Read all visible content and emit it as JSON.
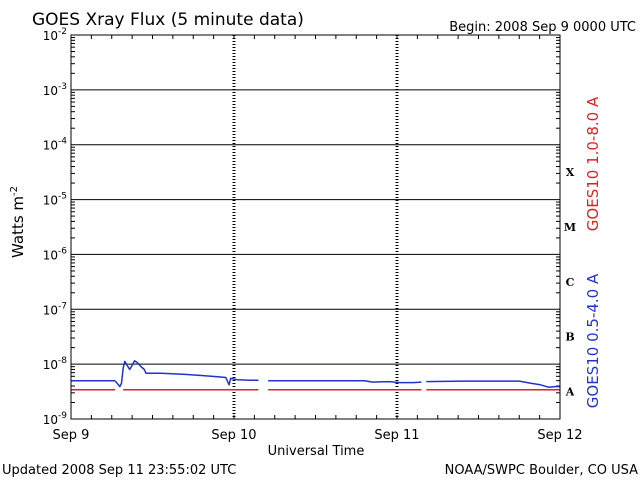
{
  "chart_data": {
    "type": "line",
    "title": "GOES Xray Flux (5 minute data)",
    "begin_label": "Begin:  2008 Sep 9 0000 UTC",
    "xlabel": "Universal Time",
    "ylabel_base": "Watts m",
    "ylabel_exp": "-2",
    "footer_left": "Updated 2008 Sep 11 23:55:02 UTC",
    "footer_right": "NOAA/SWPC Boulder, CO USA",
    "x_unit": "days since 2008 Sep 9 0000 UTC",
    "xlim": [
      0,
      3
    ],
    "x_ticks": [
      {
        "value": 0,
        "label": "Sep 9"
      },
      {
        "value": 1,
        "label": "Sep 10"
      },
      {
        "value": 2,
        "label": "Sep 11"
      },
      {
        "value": 3,
        "label": "Sep 12"
      }
    ],
    "y_scale": "log",
    "ylim_exponent": [
      -9,
      -2
    ],
    "y_ticks": [
      {
        "exp": -9,
        "base": "10",
        "sup": "-9"
      },
      {
        "exp": -8,
        "base": "10",
        "sup": "-8"
      },
      {
        "exp": -7,
        "base": "10",
        "sup": "-7"
      },
      {
        "exp": -6,
        "base": "10",
        "sup": "-6"
      },
      {
        "exp": -5,
        "base": "10",
        "sup": "-5"
      },
      {
        "exp": -4,
        "base": "10",
        "sup": "-4"
      },
      {
        "exp": -3,
        "base": "10",
        "sup": "-3"
      },
      {
        "exp": -2,
        "base": "10",
        "sup": "-2"
      }
    ],
    "flare_classes": [
      {
        "label": "A",
        "exp": -8
      },
      {
        "label": "B",
        "exp": -7
      },
      {
        "label": "C",
        "exp": -6
      },
      {
        "label": "M",
        "exp": -5
      },
      {
        "label": "X",
        "exp": -4
      }
    ],
    "grid": true,
    "series": [
      {
        "name": "GOES10 0.5-4.0 A",
        "color": "#2233cc",
        "segments": [
          [
            [
              0,
              5e-09
            ],
            [
              0.27,
              5e-09
            ]
          ],
          [
            [
              0.27,
              5e-09
            ],
            [
              0.3,
              3.9e-09
            ],
            [
              0.31,
              4.5e-09
            ],
            [
              0.32,
              8.5e-09
            ],
            [
              0.33,
              1.12e-08
            ],
            [
              0.34,
              1e-08
            ],
            [
              0.36,
              8e-09
            ],
            [
              0.37,
              9e-09
            ],
            [
              0.39,
              1.15e-08
            ],
            [
              0.41,
              1.05e-08
            ],
            [
              0.43,
              9e-09
            ],
            [
              0.45,
              8e-09
            ],
            [
              0.46,
              6.8e-09
            ],
            [
              0.55,
              6.8e-09
            ],
            [
              0.62,
              6.7e-09
            ],
            [
              0.7,
              6.5e-09
            ],
            [
              0.8,
              6.2e-09
            ],
            [
              0.9,
              5.9e-09
            ],
            [
              0.95,
              5.7e-09
            ],
            [
              0.97,
              4.2e-09
            ],
            [
              0.98,
              5.5e-09
            ],
            [
              1.02,
              5.2e-09
            ],
            [
              1.1,
              5.1e-09
            ],
            [
              1.15,
              5.1e-09
            ]
          ],
          [
            [
              1.21,
              5e-09
            ],
            [
              1.4,
              5e-09
            ],
            [
              1.6,
              5e-09
            ],
            [
              1.8,
              5e-09
            ],
            [
              1.85,
              4.7e-09
            ],
            [
              1.95,
              4.8e-09
            ],
            [
              2.02,
              4.6e-09
            ],
            [
              2.1,
              4.6e-09
            ],
            [
              2.15,
              4.7e-09
            ]
          ],
          [
            [
              2.18,
              4.8e-09
            ],
            [
              2.4,
              4.9e-09
            ],
            [
              2.6,
              4.9e-09
            ],
            [
              2.75,
              4.9e-09
            ],
            [
              2.82,
              4.5e-09
            ],
            [
              2.88,
              4.2e-09
            ],
            [
              2.93,
              3.8e-09
            ],
            [
              2.97,
              3.9e-09
            ],
            [
              3.0,
              3.9e-09
            ]
          ]
        ]
      },
      {
        "name": "GOES10 1.0-8.0 A",
        "color": "#dd2222",
        "segments": [
          [
            [
              0,
              3.4e-09
            ],
            [
              0.27,
              3.4e-09
            ]
          ],
          [
            [
              0.32,
              3.4e-09
            ],
            [
              1.15,
              3.4e-09
            ]
          ],
          [
            [
              1.21,
              3.4e-09
            ],
            [
              2.15,
              3.4e-09
            ]
          ],
          [
            [
              2.18,
              3.4e-09
            ],
            [
              3.0,
              3.4e-09
            ]
          ]
        ]
      }
    ]
  }
}
